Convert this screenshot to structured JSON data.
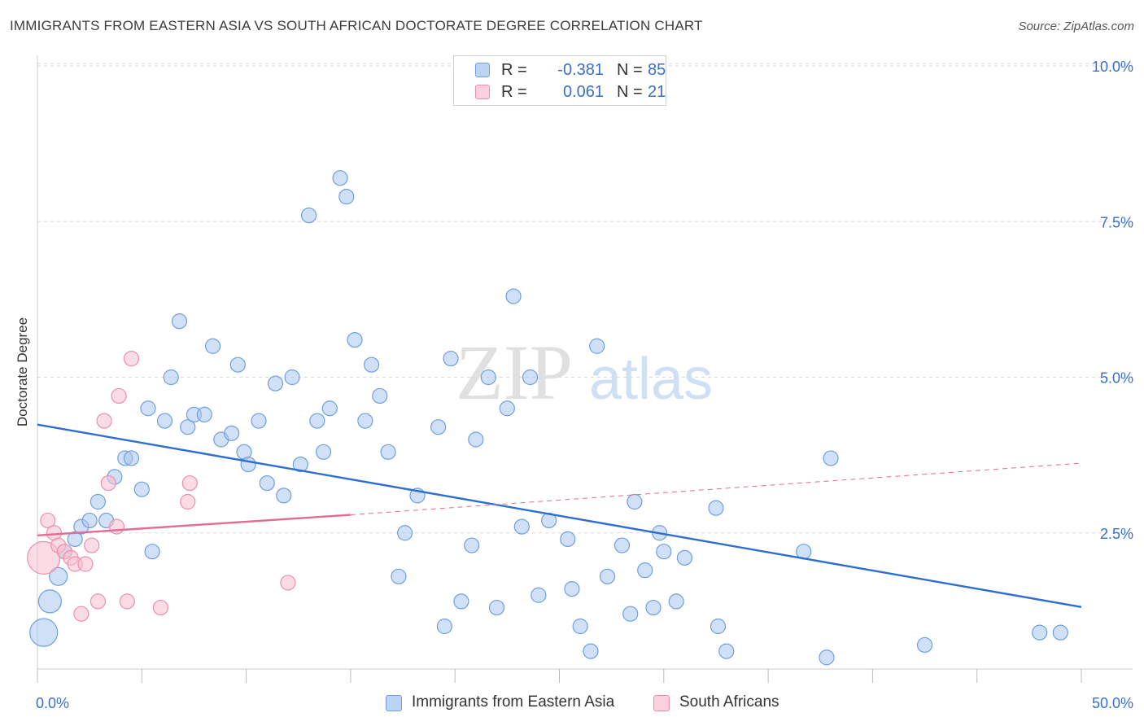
{
  "title": "IMMIGRANTS FROM EASTERN ASIA VS SOUTH AFRICAN DOCTORATE DEGREE CORRELATION CHART",
  "source": "Source: ZipAtlas.com",
  "watermark": {
    "zip": "ZIP",
    "atlas": "atlas"
  },
  "legend_stats": [
    {
      "r_label": "R =",
      "r_value": "-0.381",
      "n_label": "N =",
      "n_value": "85",
      "color": "#a8c8f0",
      "border": "#6f9fe0"
    },
    {
      "r_label": "R =",
      "r_value": "0.061",
      "n_label": "N =",
      "n_value": "21",
      "color": "#f8c0d0",
      "border": "#ec8fac"
    }
  ],
  "colors": {
    "blue_fill": "#a9c7ef",
    "blue_stroke": "#6f9fe0",
    "blue_line": "#2d6fcf",
    "pink_fill": "#f7bfd0",
    "pink_stroke": "#ec8fac",
    "pink_line": "#e36b97",
    "axis_text": "#3a6fc9",
    "grid": "#dadada"
  },
  "chart_data": {
    "type": "scatter",
    "title": "IMMIGRANTS FROM EASTERN ASIA VS SOUTH AFRICAN DOCTORATE DEGREE CORRELATION CHART",
    "xlabel": "",
    "ylabel": "Doctorate Degree",
    "xlim": [
      0,
      50
    ],
    "ylim": [
      0,
      10.5
    ],
    "x_tick_labels": [
      "0.0%",
      "50.0%"
    ],
    "y_tick_labels": [
      "2.5%",
      "5.0%",
      "7.5%",
      "10.0%"
    ],
    "y_ticks": [
      2.5,
      5.0,
      7.5,
      10.0
    ],
    "grid": true,
    "series": [
      {
        "name": "Immigrants from Eastern Asia",
        "points": [
          [
            0.3,
            0.9
          ],
          [
            0.6,
            1.4
          ],
          [
            1.0,
            1.8
          ],
          [
            1.3,
            2.2
          ],
          [
            1.8,
            2.4
          ],
          [
            2.1,
            2.6
          ],
          [
            2.5,
            2.7
          ],
          [
            2.9,
            3.0
          ],
          [
            3.3,
            2.7
          ],
          [
            3.7,
            3.4
          ],
          [
            4.2,
            3.7
          ],
          [
            4.5,
            3.7
          ],
          [
            5.0,
            3.2
          ],
          [
            5.3,
            4.5
          ],
          [
            5.5,
            2.2
          ],
          [
            6.1,
            4.3
          ],
          [
            6.4,
            5.0
          ],
          [
            6.8,
            5.9
          ],
          [
            7.2,
            4.2
          ],
          [
            7.5,
            4.4
          ],
          [
            8.0,
            4.4
          ],
          [
            8.4,
            5.5
          ],
          [
            8.8,
            4.0
          ],
          [
            9.3,
            4.1
          ],
          [
            9.6,
            5.2
          ],
          [
            9.9,
            3.8
          ],
          [
            10.1,
            3.6
          ],
          [
            10.6,
            4.3
          ],
          [
            11.0,
            3.3
          ],
          [
            11.4,
            4.9
          ],
          [
            11.8,
            3.1
          ],
          [
            12.2,
            5.0
          ],
          [
            12.6,
            3.6
          ],
          [
            13.0,
            7.6
          ],
          [
            13.4,
            4.3
          ],
          [
            13.7,
            3.8
          ],
          [
            14.0,
            4.5
          ],
          [
            14.5,
            8.2
          ],
          [
            14.8,
            7.9
          ],
          [
            15.2,
            5.6
          ],
          [
            15.7,
            4.3
          ],
          [
            16.0,
            5.2
          ],
          [
            16.4,
            4.7
          ],
          [
            16.8,
            3.8
          ],
          [
            17.3,
            1.8
          ],
          [
            17.6,
            2.5
          ],
          [
            18.2,
            3.1
          ],
          [
            19.2,
            4.2
          ],
          [
            19.5,
            1.0
          ],
          [
            19.8,
            5.3
          ],
          [
            20.3,
            1.4
          ],
          [
            20.8,
            2.3
          ],
          [
            21.0,
            4.0
          ],
          [
            21.6,
            5.0
          ],
          [
            22.0,
            1.3
          ],
          [
            22.5,
            4.5
          ],
          [
            22.8,
            6.3
          ],
          [
            23.2,
            2.6
          ],
          [
            23.6,
            5.0
          ],
          [
            24.0,
            1.5
          ],
          [
            24.5,
            2.7
          ],
          [
            25.4,
            2.4
          ],
          [
            25.6,
            1.6
          ],
          [
            26.0,
            1.0
          ],
          [
            26.5,
            0.6
          ],
          [
            26.8,
            5.5
          ],
          [
            27.3,
            1.8
          ],
          [
            28.0,
            2.3
          ],
          [
            28.4,
            1.2
          ],
          [
            28.6,
            3.0
          ],
          [
            29.1,
            1.9
          ],
          [
            29.5,
            1.3
          ],
          [
            29.8,
            2.5
          ],
          [
            30.0,
            2.2
          ],
          [
            30.6,
            1.4
          ],
          [
            31.0,
            2.1
          ],
          [
            32.5,
            2.9
          ],
          [
            32.6,
            1.0
          ],
          [
            33.0,
            0.6
          ],
          [
            36.7,
            2.2
          ],
          [
            37.8,
            0.5
          ],
          [
            38.0,
            3.7
          ],
          [
            42.5,
            0.7
          ],
          [
            48.0,
            0.9
          ],
          [
            49.0,
            0.9
          ]
        ]
      },
      {
        "name": "South Africans",
        "points": [
          [
            0.3,
            2.1
          ],
          [
            0.5,
            2.7
          ],
          [
            0.8,
            2.5
          ],
          [
            1.0,
            2.3
          ],
          [
            1.3,
            2.2
          ],
          [
            1.6,
            2.1
          ],
          [
            1.8,
            2.0
          ],
          [
            2.1,
            1.2
          ],
          [
            2.3,
            2.0
          ],
          [
            2.6,
            2.3
          ],
          [
            2.9,
            1.4
          ],
          [
            3.2,
            4.3
          ],
          [
            3.4,
            3.3
          ],
          [
            3.8,
            2.6
          ],
          [
            3.9,
            4.7
          ],
          [
            4.3,
            1.4
          ],
          [
            4.5,
            5.3
          ],
          [
            5.9,
            1.3
          ],
          [
            7.2,
            3.0
          ],
          [
            7.3,
            3.3
          ],
          [
            12.0,
            1.7
          ]
        ]
      }
    ],
    "trend_lines": [
      {
        "series": "Immigrants from Eastern Asia",
        "x": [
          0,
          50
        ],
        "y": [
          4.24,
          1.31
        ],
        "style": "solid"
      },
      {
        "series": "South Africans",
        "x": [
          0,
          15
        ],
        "y": [
          2.46,
          2.79
        ],
        "style": "solid"
      },
      {
        "series": "South Africans",
        "x": [
          15,
          50
        ],
        "y": [
          2.79,
          3.62
        ],
        "style": "dashed"
      }
    ]
  }
}
